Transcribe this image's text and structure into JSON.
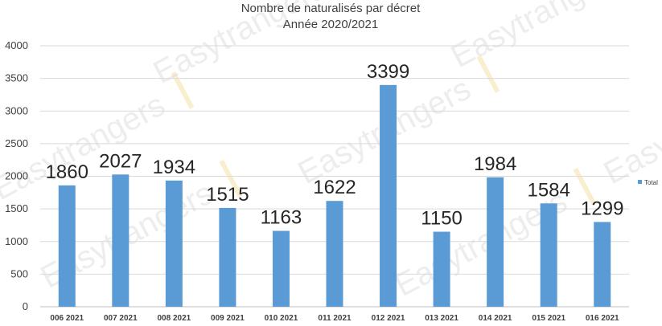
{
  "chart_data": {
    "type": "bar",
    "title": "Nombre de naturalisés par décret",
    "subtitle": "Année 2020/2021",
    "categories": [
      "006 2021",
      "007 2021",
      "008 2021",
      "009 2021",
      "010 2021",
      "011 2021",
      "012 2021",
      "013 2021",
      "014 2021",
      "015 2021",
      "016 2021"
    ],
    "series": [
      {
        "name": "Total",
        "values": [
          1860,
          2027,
          1934,
          1515,
          1163,
          1622,
          3399,
          1150,
          1984,
          1584,
          1299
        ],
        "color": "#5b9bd5"
      }
    ],
    "ylim": [
      0,
      4000
    ],
    "yticks": [
      "0",
      "500",
      "1000",
      "1500",
      "2000",
      "2500",
      "3000",
      "3500",
      "4000"
    ],
    "grid": true,
    "legend_position": "right",
    "watermark": "Easytrangers"
  }
}
